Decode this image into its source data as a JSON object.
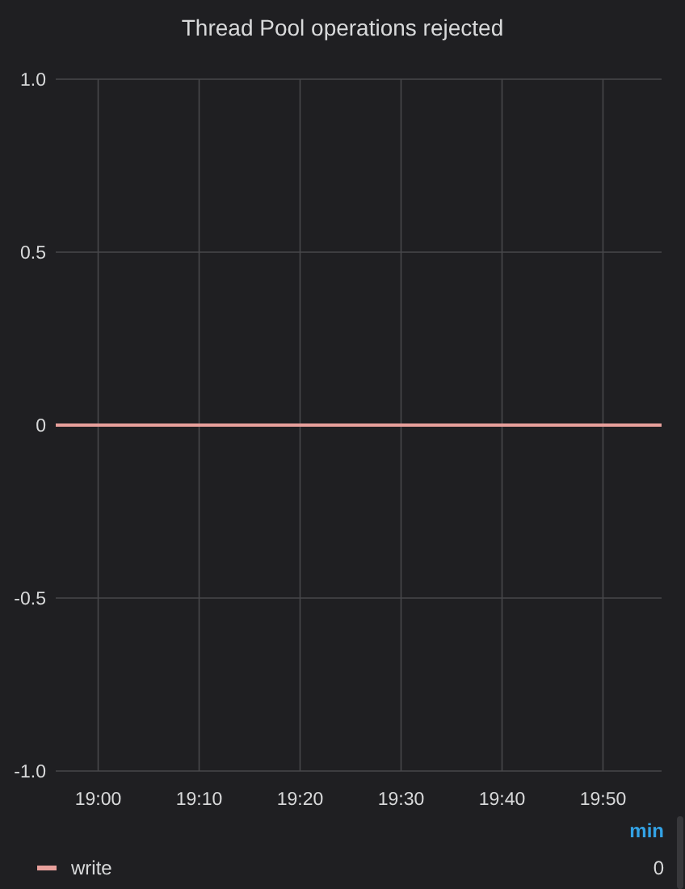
{
  "chart_data": {
    "type": "line",
    "title": "Thread Pool operations rejected",
    "x": [
      18.93,
      19.93
    ],
    "series": [
      {
        "name": "write",
        "color": "#e8a09c",
        "values": [
          0,
          0
        ]
      }
    ],
    "xlim": [
      18.93,
      19.93
    ],
    "xticks": [
      {
        "value": 19,
        "label": "19:00"
      },
      {
        "value": 19.1667,
        "label": "19:10"
      },
      {
        "value": 19.3333,
        "label": "19:20"
      },
      {
        "value": 19.5,
        "label": "19:30"
      },
      {
        "value": 19.6667,
        "label": "19:40"
      },
      {
        "value": 19.8333,
        "label": "19:50"
      }
    ],
    "ylim": [
      -1,
      1
    ],
    "yticks": [
      {
        "value": 1,
        "label": "1.0"
      },
      0.5,
      0,
      -0.5,
      {
        "value": -1,
        "label": "-1.0"
      }
    ],
    "grid": true,
    "legend": "bottom",
    "annotations": [
      "min",
      "0"
    ]
  }
}
